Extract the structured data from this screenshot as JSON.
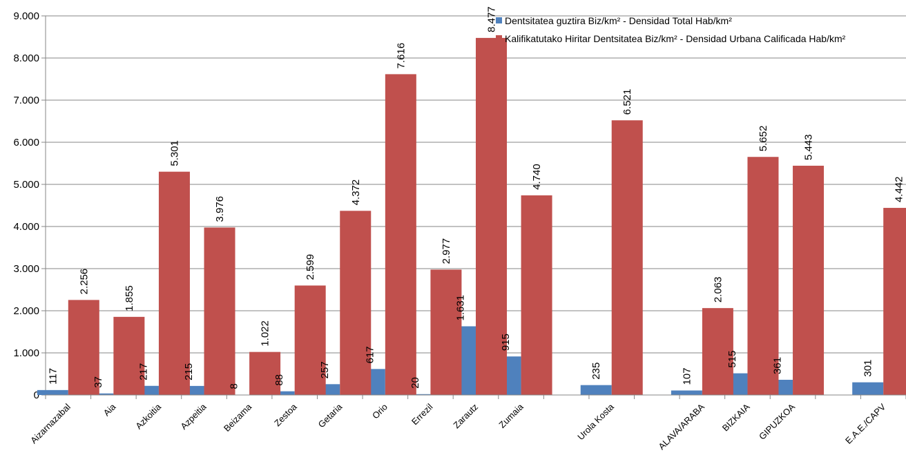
{
  "chart_data": {
    "type": "bar",
    "title": "",
    "xlabel": "",
    "ylabel": "",
    "ylim": [
      0,
      9000
    ],
    "yticks": [
      0,
      1000,
      2000,
      3000,
      4000,
      5000,
      6000,
      7000,
      8000,
      9000
    ],
    "ytick_labels": [
      "0",
      "1.000",
      "2.000",
      "3.000",
      "4.000",
      "5.000",
      "6.000",
      "7.000",
      "8.000",
      "9.000"
    ],
    "grid": true,
    "legend_position": "top-right",
    "categories": [
      "Aizarnazabal",
      "Aia",
      "Azkoitia",
      "Azpeitia",
      "Beizama",
      "Zestoa",
      "Getaria",
      "Orio",
      "Errezil",
      "Zarautz",
      "Zumaia",
      "",
      "Urola Kosta",
      "",
      "ALAVA/ARABA",
      "BIZKAIA",
      "GIPUZKOA",
      "",
      "E.A.E./CAPV"
    ],
    "series": [
      {
        "name": "Dentsitatea guztira Biz/km²  -  Densidad Total Hab/km²",
        "color": "#4f81bd",
        "values": [
          117,
          37,
          217,
          215,
          8,
          88,
          257,
          617,
          20,
          1631,
          915,
          null,
          235,
          null,
          107,
          515,
          361,
          null,
          301
        ],
        "labels": [
          "117",
          "37",
          "217",
          "215",
          "8",
          "88",
          "257",
          "617",
          "20",
          "1.631",
          "915",
          "",
          "235",
          "",
          "107",
          "515",
          "361",
          "",
          "301"
        ]
      },
      {
        "name": "Kalifikatutako Hiritar Dentsitatea Biz/km²  -  Densidad Urbana Calificada Hab/km²",
        "color": "#c0504d",
        "values": [
          2256,
          1855,
          5301,
          3976,
          1022,
          2599,
          4372,
          7616,
          2977,
          8477,
          4740,
          null,
          6521,
          null,
          2063,
          5652,
          5443,
          null,
          4442
        ],
        "labels": [
          "2.256",
          "1.855",
          "5.301",
          "3.976",
          "1.022",
          "2.599",
          "4.372",
          "7.616",
          "2.977",
          "8.477",
          "4.740",
          "",
          "6.521",
          "",
          "2.063",
          "5.652",
          "5.443",
          "",
          "4.442"
        ]
      }
    ]
  }
}
